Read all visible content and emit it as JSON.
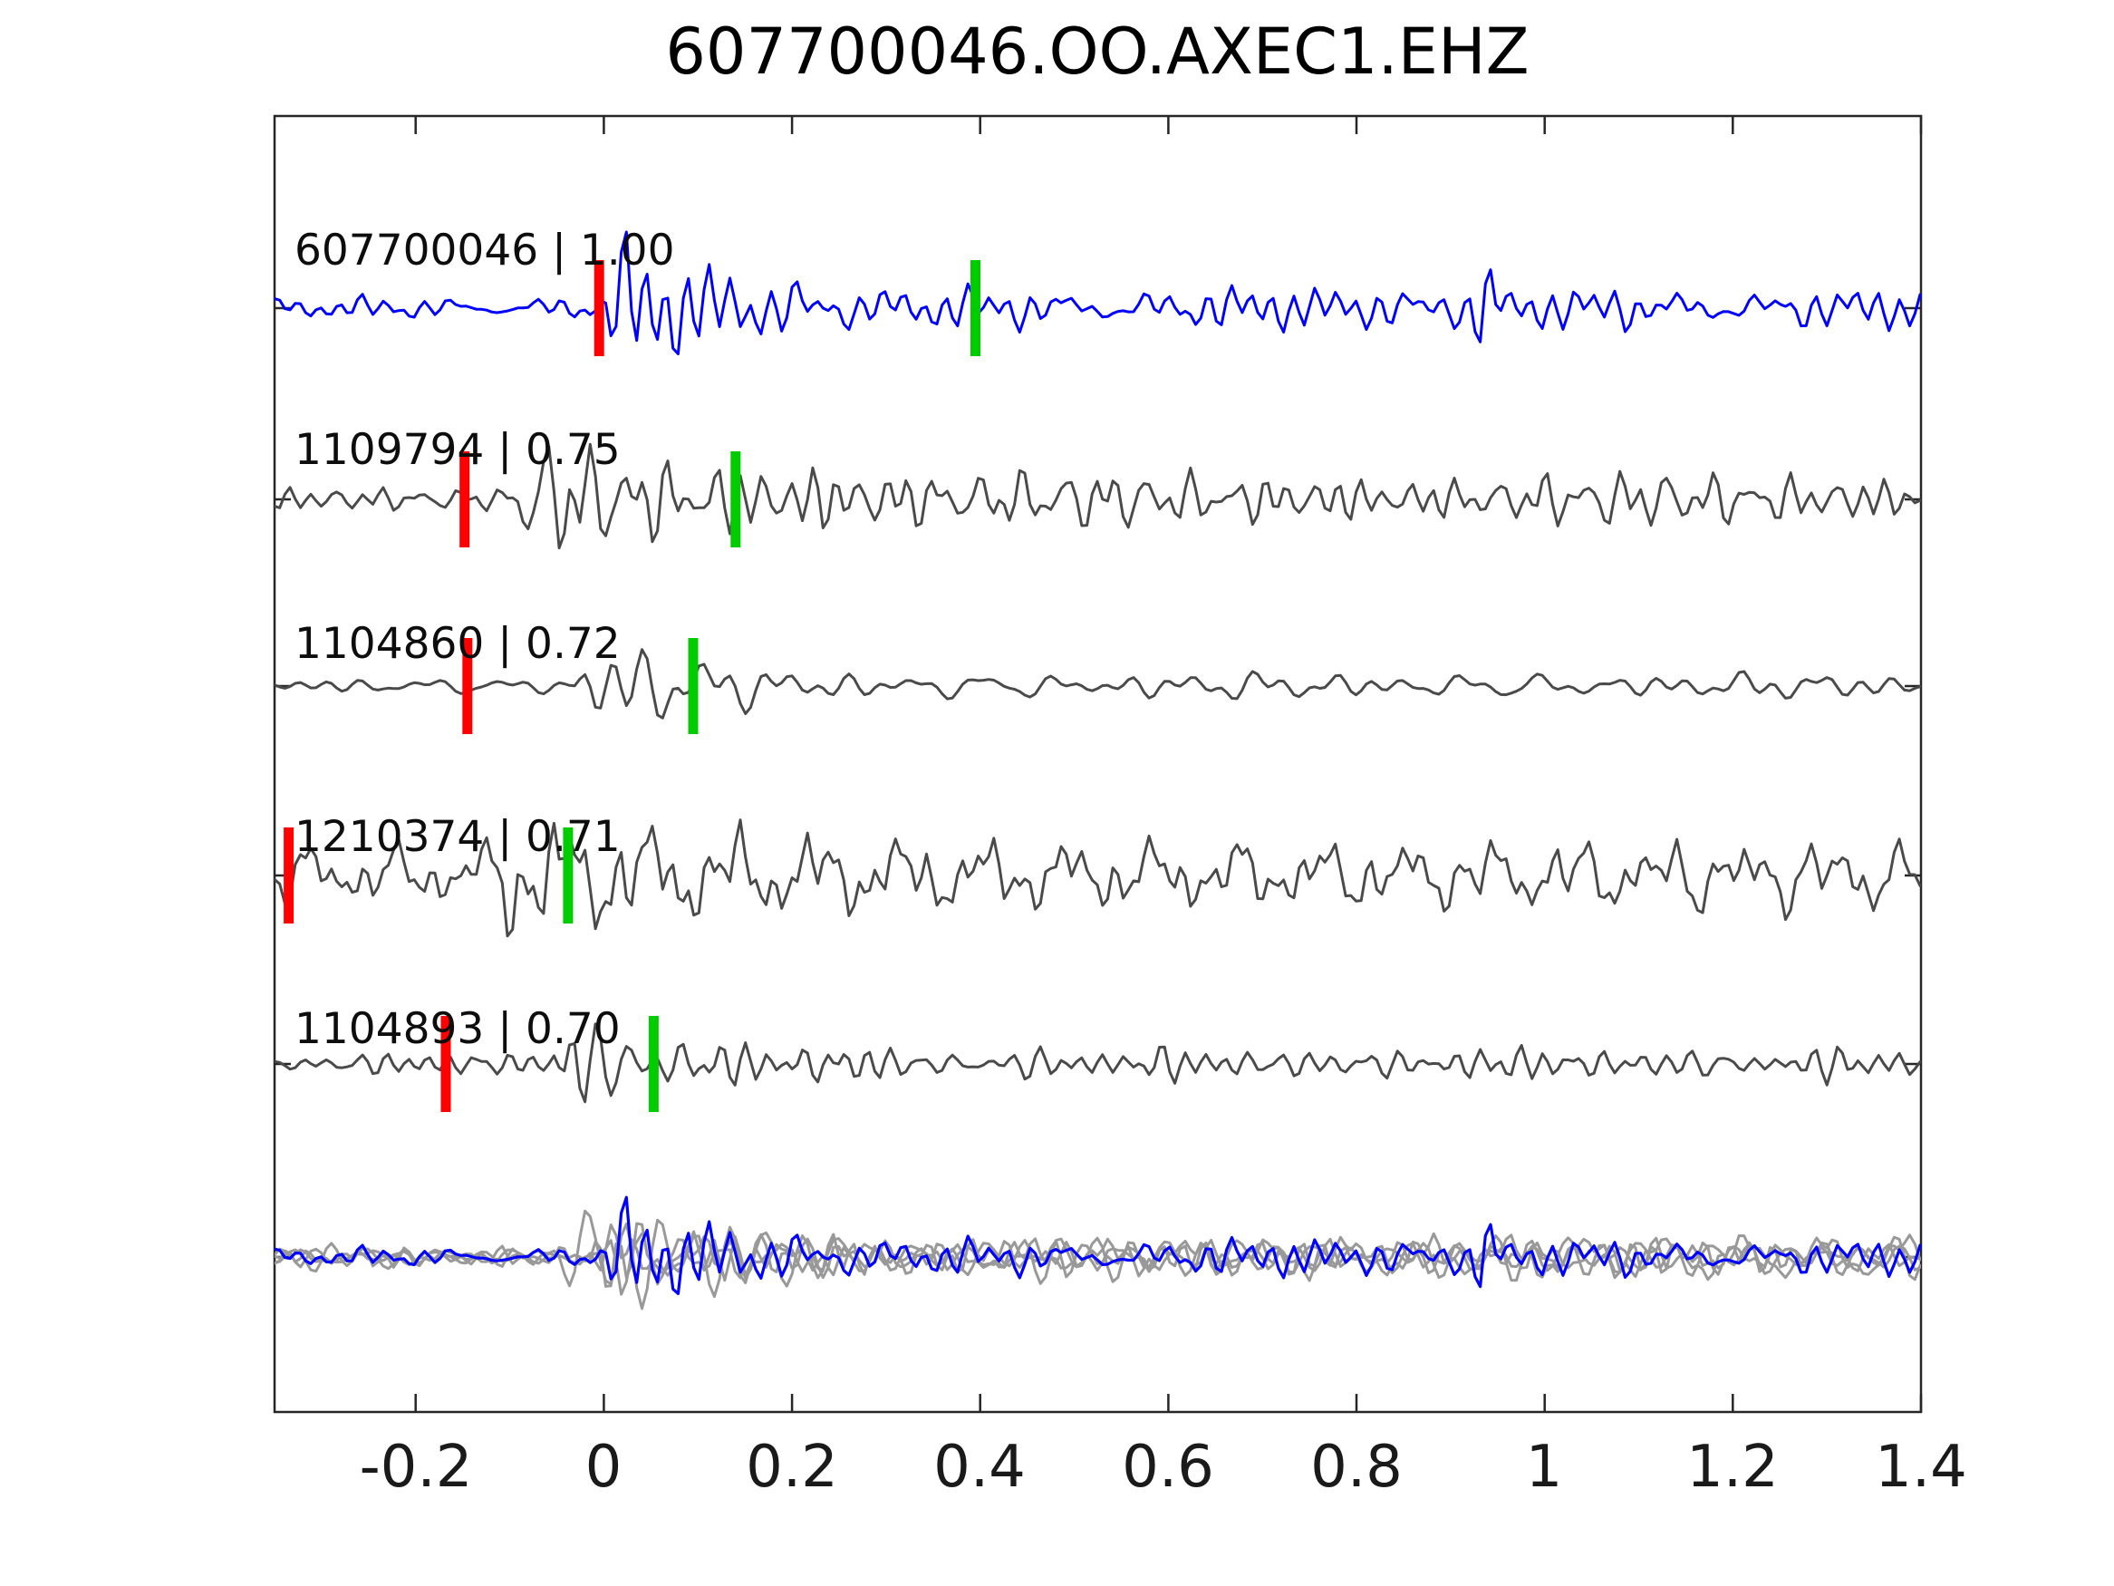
{
  "title": "607700046.OO.AXEC1.EHZ",
  "colors": {
    "match_trace": "#0000ff",
    "template_trace": "#4a4a4a",
    "overlay_trace": "#999999",
    "red_pick": "#ff0000",
    "green_pick": "#00cc00",
    "frame": "#262626",
    "text": "#000000"
  },
  "chart_data": {
    "type": "line",
    "title": "607700046.OO.AXEC1.EHZ",
    "xlabel": "",
    "ylabel": "",
    "xlim": [
      -0.35,
      1.4
    ],
    "grid": false,
    "legend": "none",
    "xticks": [
      -0.2,
      0,
      0.2,
      0.4,
      0.6,
      0.8,
      1,
      1.2,
      1.4
    ],
    "xtick_labels": [
      "-0.2",
      "0",
      "0.2",
      "0.4",
      "0.6",
      "0.8",
      "1",
      "1.2",
      "1.4"
    ],
    "rows": [
      {
        "id": "607700046",
        "label": "607700046 | 1.00",
        "correlation": 1.0,
        "kind": "match",
        "red_pick": -0.005,
        "green_pick": 0.395,
        "synth": {
          "seed": 7,
          "noise": 13,
          "onset": -0.005,
          "peak": 85,
          "tau": 0.1,
          "coda": 22,
          "f0": 34,
          "spike_x": 0.935,
          "spike_amp": 62,
          "spike_w": 0.013
        }
      },
      {
        "id": "1109794",
        "label": "1109794 | 0.75",
        "correlation": 0.75,
        "kind": "template",
        "red_pick": -0.148,
        "green_pick": 0.14,
        "synth": {
          "seed": 12,
          "noise": 12,
          "onset": -0.105,
          "peak": 74,
          "tau": 0.22,
          "coda": 27,
          "f0": 31
        }
      },
      {
        "id": "1104860",
        "label": "1104860 | 0.72",
        "correlation": 0.72,
        "kind": "template",
        "red_pick": -0.145,
        "green_pick": 0.095,
        "synth": {
          "seed": 23,
          "noise": 9,
          "onset": -0.04,
          "peak": 90,
          "tau": 0.085,
          "coda": 12,
          "f0": 32
        }
      },
      {
        "id": "1210374",
        "label": "1210374 | 0.71",
        "correlation": 0.71,
        "kind": "template",
        "red_pick": -0.335,
        "green_pick": -0.038,
        "synth": {
          "seed": 35,
          "noise": 32,
          "onset": -0.13,
          "peak": 82,
          "tau": 0.28,
          "coda": 36,
          "f0": 36
        }
      },
      {
        "id": "1104893",
        "label": "1104893 | 0.70",
        "correlation": 0.7,
        "kind": "template",
        "red_pick": -0.168,
        "green_pick": 0.053,
        "synth": {
          "seed": 41,
          "noise": 11,
          "onset": -0.06,
          "peak": 86,
          "tau": 0.085,
          "coda": 16,
          "f0": 30
        }
      },
      {
        "id": "overlay",
        "label": "",
        "kind": "overlay",
        "gray": [
          {
            "seed": 52,
            "noise": 10,
            "onset": -0.02,
            "peak": 62,
            "tau": 0.1,
            "coda": 17,
            "f0": 33
          },
          {
            "seed": 53,
            "noise": 12,
            "onset": -0.03,
            "peak": 68,
            "tau": 0.14,
            "coda": 19,
            "f0": 30
          },
          {
            "seed": 54,
            "noise": 9,
            "onset": -0.015,
            "peak": 58,
            "tau": 0.11,
            "coda": 16,
            "f0": 35
          },
          {
            "seed": 55,
            "noise": 14,
            "onset": -0.05,
            "peak": 64,
            "tau": 0.18,
            "coda": 20,
            "f0": 28
          }
        ],
        "blue": {
          "seed": 7,
          "noise": 11,
          "onset": -0.005,
          "peak": 66,
          "tau": 0.1,
          "coda": 19,
          "f0": 34,
          "spike_x": 0.935,
          "spike_amp": 55,
          "spike_w": 0.012
        }
      }
    ]
  }
}
